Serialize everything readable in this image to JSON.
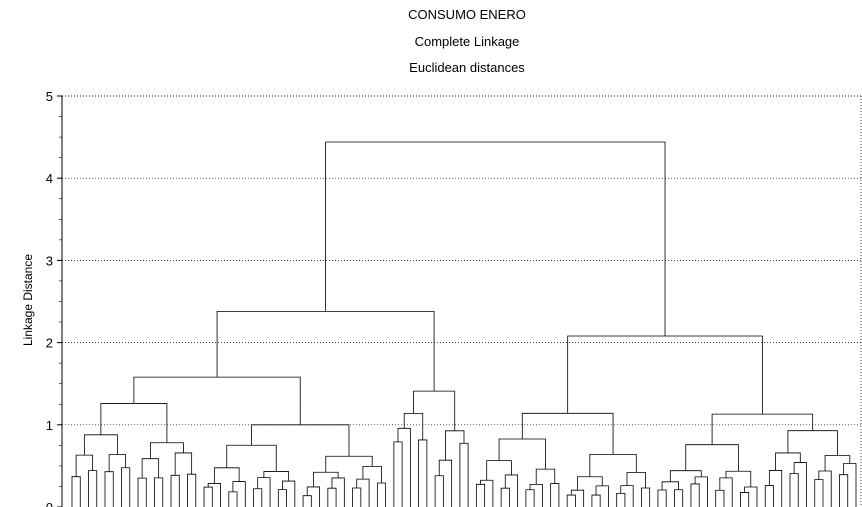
{
  "chart_data": {
    "type": "dendrogram",
    "title_lines": [
      "CONSUMO ENERO",
      "Complete Linkage",
      "Euclidean distances"
    ],
    "ylabel": "Linkage Distance",
    "ylim": [
      0,
      5
    ],
    "yticks": [
      0,
      1,
      2,
      3,
      4,
      5
    ],
    "grid": "horizontal dotted",
    "leaf_count": 96,
    "main_merges": [
      {
        "height": 4.44,
        "description": "root: left group + right group"
      },
      {
        "height": 2.38,
        "description": "left group"
      },
      {
        "height": 2.08,
        "description": "right group"
      },
      {
        "height": 1.58,
        "description": "left-left subgroup"
      },
      {
        "height": 1.41,
        "description": "left-right subgroup"
      },
      {
        "height": 1.26,
        "description": "far-left subgroup"
      },
      {
        "height": 1.14,
        "description": "right-left subgroup"
      },
      {
        "height": 1.13,
        "description": "right-right subgroup"
      },
      {
        "height": 1.0,
        "description": "middle subgroup"
      }
    ]
  }
}
